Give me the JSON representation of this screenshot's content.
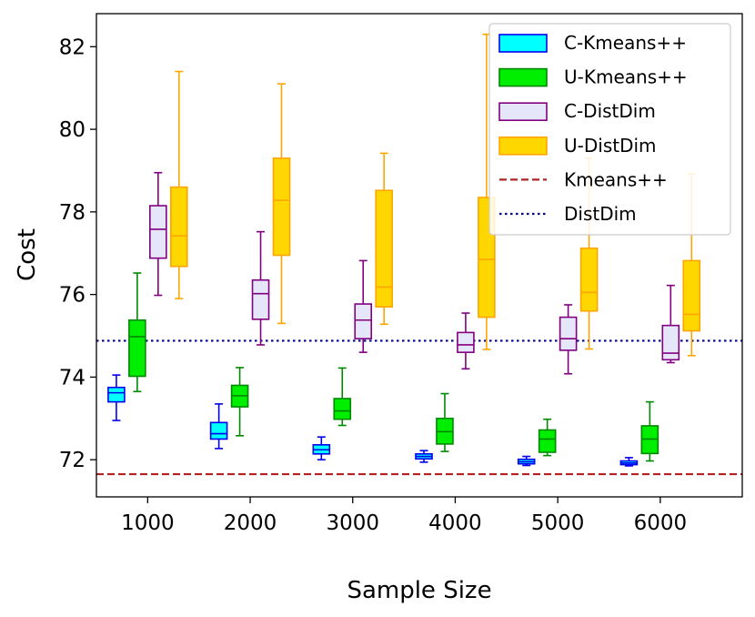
{
  "chart_data": {
    "type": "box",
    "xlabel": "Sample Size",
    "ylabel": "Cost",
    "categories": [
      "1000",
      "2000",
      "3000",
      "4000",
      "5000",
      "6000"
    ],
    "yticks": [
      "72",
      "74",
      "76",
      "78",
      "80",
      "82"
    ],
    "xlim": [
      500,
      6800
    ],
    "ylim": [
      71.1,
      82.8
    ],
    "legend_position": "top-right",
    "grid": false,
    "series": [
      {
        "name": "C-Kmeans++",
        "fill": "#00ffff",
        "stroke": "#0000ee",
        "boxes": [
          {
            "min": 72.95,
            "q1": 73.4,
            "median": 73.62,
            "q3": 73.75,
            "max": 74.05
          },
          {
            "min": 72.27,
            "q1": 72.5,
            "median": 72.63,
            "q3": 72.9,
            "max": 73.35
          },
          {
            "min": 72.0,
            "q1": 72.14,
            "median": 72.24,
            "q3": 72.36,
            "max": 72.55
          },
          {
            "min": 71.94,
            "q1": 72.02,
            "median": 72.08,
            "q3": 72.14,
            "max": 72.22
          },
          {
            "min": 71.86,
            "q1": 71.9,
            "median": 71.95,
            "q3": 72.01,
            "max": 72.08
          },
          {
            "min": 71.85,
            "q1": 71.88,
            "median": 71.92,
            "q3": 71.97,
            "max": 72.05
          }
        ]
      },
      {
        "name": "U-Kmeans++",
        "fill": "#00ee00",
        "stroke": "#008800",
        "boxes": [
          {
            "min": 73.65,
            "q1": 74.02,
            "median": 74.98,
            "q3": 75.38,
            "max": 76.52
          },
          {
            "min": 72.58,
            "q1": 73.28,
            "median": 73.55,
            "q3": 73.8,
            "max": 74.23
          },
          {
            "min": 72.83,
            "q1": 72.98,
            "median": 73.18,
            "q3": 73.48,
            "max": 74.22
          },
          {
            "min": 72.2,
            "q1": 72.38,
            "median": 72.68,
            "q3": 73.0,
            "max": 73.6
          },
          {
            "min": 72.1,
            "q1": 72.18,
            "median": 72.5,
            "q3": 72.72,
            "max": 72.98
          },
          {
            "min": 71.97,
            "q1": 72.15,
            "median": 72.5,
            "q3": 72.82,
            "max": 73.4
          }
        ]
      },
      {
        "name": "C-DistDim",
        "fill": "#e6e6fa",
        "stroke": "#800080",
        "boxes": [
          {
            "min": 75.98,
            "q1": 76.88,
            "median": 77.58,
            "q3": 78.15,
            "max": 78.95
          },
          {
            "min": 74.78,
            "q1": 75.4,
            "median": 76.02,
            "q3": 76.35,
            "max": 77.52
          },
          {
            "min": 74.6,
            "q1": 74.93,
            "median": 75.38,
            "q3": 75.77,
            "max": 76.82
          },
          {
            "min": 74.2,
            "q1": 74.6,
            "median": 74.78,
            "q3": 75.08,
            "max": 75.55
          },
          {
            "min": 74.08,
            "q1": 74.65,
            "median": 74.93,
            "q3": 75.45,
            "max": 75.75
          },
          {
            "min": 74.35,
            "q1": 74.42,
            "median": 74.58,
            "q3": 75.25,
            "max": 76.22
          }
        ]
      },
      {
        "name": "U-DistDim",
        "fill": "#ffd700",
        "stroke": "#ffa500",
        "boxes": [
          {
            "min": 75.9,
            "q1": 76.68,
            "median": 77.42,
            "q3": 78.6,
            "max": 81.4
          },
          {
            "min": 75.3,
            "q1": 76.95,
            "median": 78.28,
            "q3": 79.3,
            "max": 81.1
          },
          {
            "min": 75.28,
            "q1": 75.7,
            "median": 76.18,
            "q3": 78.52,
            "max": 79.42
          },
          {
            "min": 74.67,
            "q1": 75.45,
            "median": 76.85,
            "q3": 78.35,
            "max": 82.3
          },
          {
            "min": 74.68,
            "q1": 75.6,
            "median": 76.05,
            "q3": 77.12,
            "max": 79.3
          },
          {
            "min": 74.52,
            "q1": 75.12,
            "median": 75.52,
            "q3": 76.82,
            "max": 78.92
          }
        ]
      }
    ],
    "reference_lines": [
      {
        "name": "Kmeans++",
        "value": 71.65,
        "color": "#b22222",
        "style": "dashed"
      },
      {
        "name": "DistDim",
        "value": 74.88,
        "color": "#00008b",
        "style": "dotted"
      }
    ]
  }
}
